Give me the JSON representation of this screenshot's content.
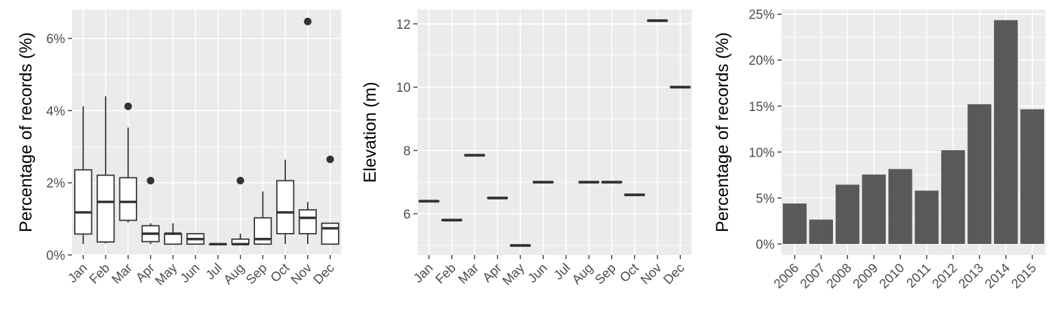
{
  "chart_data": [
    {
      "type": "box",
      "ylabel": "Percentage of records (%)",
      "xlabel": "",
      "categories": [
        "Jan",
        "Feb",
        "Mar",
        "Apr",
        "May",
        "Jun",
        "Jul",
        "Aug",
        "Sep",
        "Oct",
        "Nov",
        "Dec"
      ],
      "ylim": [
        0,
        6.8
      ],
      "yticks": [
        0,
        2,
        4,
        6
      ],
      "ytick_labels": [
        "0%",
        "2%",
        "4%",
        "6%"
      ],
      "grid": true,
      "boxes": [
        {
          "min": 0.3,
          "q1": 0.58,
          "median": 1.18,
          "q3": 2.36,
          "max": 4.12,
          "outliers": []
        },
        {
          "min": 0.32,
          "q1": 0.36,
          "median": 1.47,
          "q3": 2.21,
          "max": 4.4,
          "outliers": []
        },
        {
          "min": 0.9,
          "q1": 0.96,
          "median": 1.47,
          "q3": 2.14,
          "max": 3.53,
          "outliers": [
            4.12
          ]
        },
        {
          "min": 0.3,
          "q1": 0.37,
          "median": 0.59,
          "q3": 0.81,
          "max": 0.88,
          "outliers": [
            2.06
          ]
        },
        {
          "min": 0.3,
          "q1": 0.3,
          "median": 0.59,
          "q3": 0.59,
          "max": 0.88,
          "outliers": []
        },
        {
          "min": 0.3,
          "q1": 0.3,
          "median": 0.44,
          "q3": 0.59,
          "max": 0.59,
          "outliers": []
        },
        {
          "min": 0.3,
          "q1": 0.3,
          "median": 0.3,
          "q3": 0.3,
          "max": 0.3,
          "outliers": []
        },
        {
          "min": 0.3,
          "q1": 0.3,
          "median": 0.3,
          "q3": 0.44,
          "max": 0.59,
          "outliers": [
            2.06
          ]
        },
        {
          "min": 0.3,
          "q1": 0.3,
          "median": 0.44,
          "q3": 1.03,
          "max": 1.76,
          "outliers": []
        },
        {
          "min": 0.3,
          "q1": 0.59,
          "median": 1.18,
          "q3": 2.06,
          "max": 2.64,
          "outliers": []
        },
        {
          "min": 0.3,
          "q1": 0.59,
          "median": 1.03,
          "q3": 1.25,
          "max": 1.47,
          "outliers": [
            6.47
          ]
        },
        {
          "min": 0.3,
          "q1": 0.3,
          "median": 0.74,
          "q3": 0.88,
          "max": 0.88,
          "outliers": [
            2.65
          ]
        }
      ]
    },
    {
      "type": "scatter",
      "ylabel": "Elevation (m)",
      "xlabel": "",
      "categories": [
        "Jan",
        "Feb",
        "Mar",
        "Apr",
        "May",
        "Jun",
        "Jul",
        "Aug",
        "Sep",
        "Oct",
        "Nov",
        "Dec"
      ],
      "values": [
        6.4,
        5.8,
        7.85,
        6.5,
        5.0,
        7.0,
        null,
        7.0,
        7.0,
        6.6,
        12.1,
        10.0
      ],
      "ylim": [
        4.7,
        12.45
      ],
      "yticks": [
        6,
        8,
        10,
        12
      ],
      "ytick_labels": [
        "6",
        "8",
        "10",
        "12"
      ],
      "grid": true
    },
    {
      "type": "bar",
      "ylabel": "Percentage of records (%)",
      "xlabel": "",
      "categories": [
        "2006",
        "2007",
        "2008",
        "2009",
        "2010",
        "2011",
        "2012",
        "2013",
        "2014",
        "2015"
      ],
      "values": [
        4.4,
        2.65,
        6.45,
        7.55,
        8.15,
        5.8,
        10.2,
        15.2,
        24.35,
        14.65
      ],
      "ylim": [
        -1.2,
        25.5
      ],
      "yticks": [
        0,
        5,
        10,
        15,
        20,
        25
      ],
      "ytick_labels": [
        "0%",
        "5%",
        "10%",
        "15%",
        "20%",
        "25%"
      ],
      "grid": true
    }
  ]
}
